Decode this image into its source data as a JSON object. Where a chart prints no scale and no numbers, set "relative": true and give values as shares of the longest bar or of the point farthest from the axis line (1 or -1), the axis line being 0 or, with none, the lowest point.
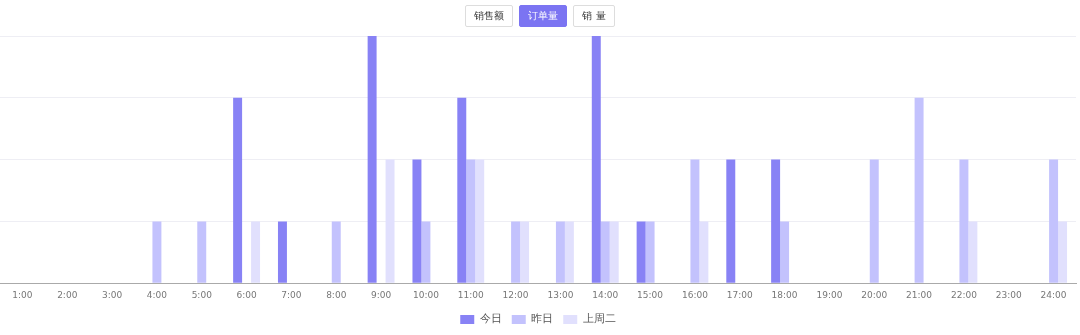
{
  "chart_data": {
    "type": "bar",
    "relative": true,
    "grid": "y",
    "legend": "bottom",
    "annotations": [
      "销售额",
      "订单量",
      "销 量"
    ],
    "categories": [
      "1:00",
      "2:00",
      "3:00",
      "4:00",
      "5:00",
      "6:00",
      "7:00",
      "8:00",
      "9:00",
      "10:00",
      "11:00",
      "12:00",
      "13:00",
      "14:00",
      "15:00",
      "16:00",
      "17:00",
      "18:00",
      "19:00",
      "20:00",
      "21:00",
      "22:00",
      "23:00",
      "24:00"
    ],
    "series": [
      {
        "name": "今日",
        "color": "#8882f5",
        "values": [
          0,
          0,
          0,
          0,
          0,
          0.75,
          0.25,
          0,
          1,
          0.5,
          0.75,
          0,
          0,
          1,
          0.25,
          0,
          0.5,
          0.5,
          0,
          0,
          0,
          0,
          0,
          0
        ]
      },
      {
        "name": "昨日",
        "color": "#c3c2fd",
        "values": [
          0,
          0,
          0,
          0.25,
          0.25,
          0,
          0,
          0.25,
          0,
          0.25,
          0.5,
          0.25,
          0.25,
          0.25,
          0.25,
          0.5,
          0,
          0.25,
          0,
          0.5,
          0.75,
          0.5,
          0,
          0.5
        ]
      },
      {
        "name": "上周二",
        "color": "#e1e0fd",
        "values": [
          0,
          0,
          0,
          0,
          0,
          0.25,
          0,
          0,
          0.5,
          0,
          0.5,
          0.25,
          0.25,
          0.25,
          0,
          0.25,
          0,
          0,
          0,
          0,
          0,
          0.25,
          0,
          0.25
        ]
      }
    ]
  }
}
